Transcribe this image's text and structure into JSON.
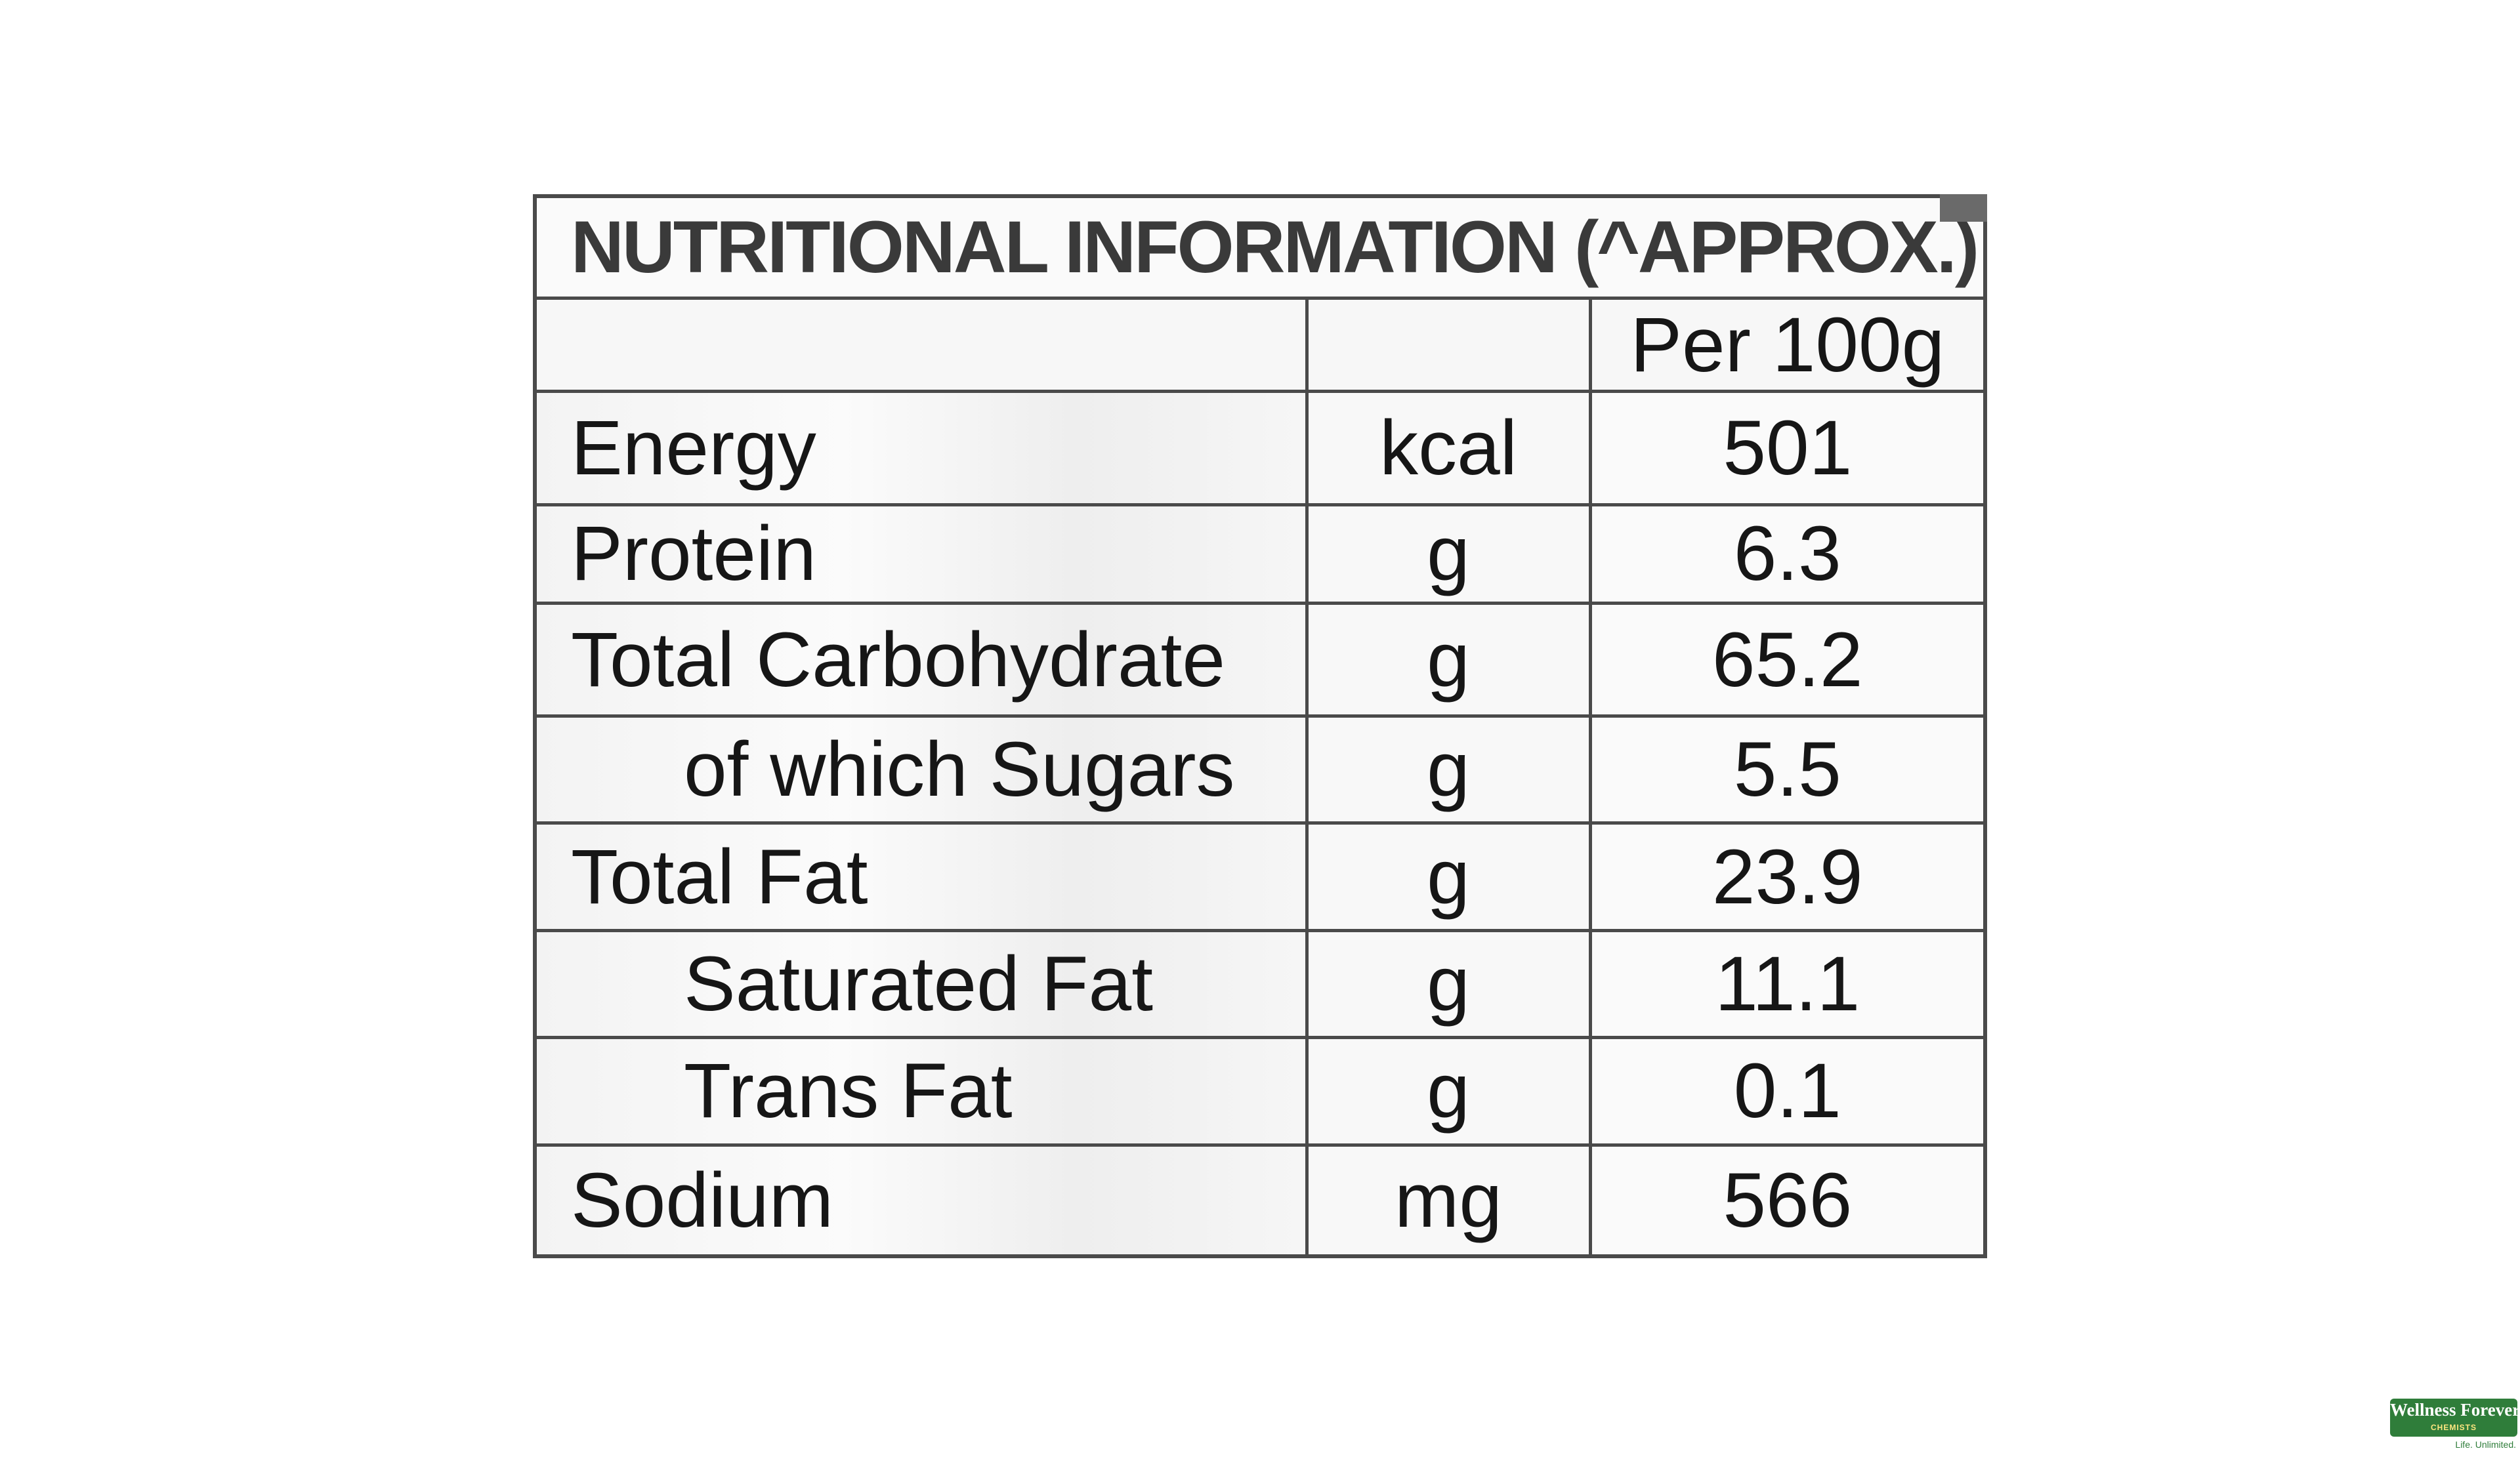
{
  "panel": {
    "title": "NUTRITIONAL INFORMATION (^APPROX.):",
    "column_header": "Per 100g",
    "rows": [
      {
        "name": "Energy",
        "unit": "kcal",
        "value": "501"
      },
      {
        "name": "Protein",
        "unit": "g",
        "value": "6.3"
      },
      {
        "name": "Total Carbohydrate",
        "unit": "g",
        "value": "65.2"
      },
      {
        "name": "of which Sugars",
        "unit": "g",
        "value": "5.5"
      },
      {
        "name": "Total Fat",
        "unit": "g",
        "value": "23.9"
      },
      {
        "name": "Saturated Fat",
        "unit": "g",
        "value": "11.1"
      },
      {
        "name": "Trans Fat",
        "unit": "g",
        "value": "0.1"
      },
      {
        "name": "Sodium",
        "unit": "mg",
        "value": "566"
      }
    ]
  },
  "brand": {
    "name": "Wellness Forever",
    "sub": "CHEMISTS",
    "tagline": "Life. Unlimited."
  }
}
